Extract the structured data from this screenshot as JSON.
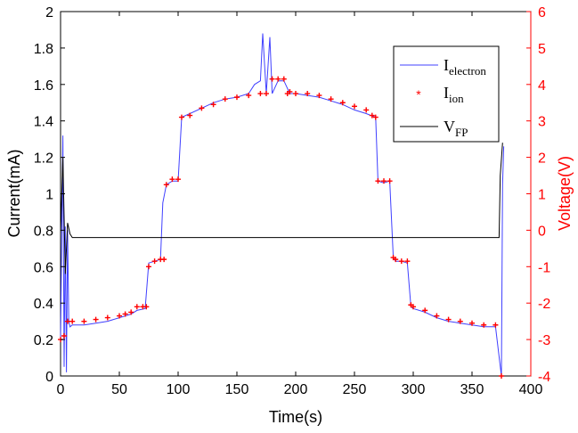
{
  "chart_data": {
    "type": "line",
    "xlabel": "Time(s)",
    "ylabel_left": "Current(mA)",
    "ylabel_right": "Voltage(V)",
    "xlim": [
      0,
      400
    ],
    "ylim_left": [
      0,
      2
    ],
    "ylim_right": [
      -4,
      6
    ],
    "x_ticks": [
      "0",
      "50",
      "100",
      "150",
      "200",
      "250",
      "300",
      "350",
      "400"
    ],
    "y_ticks_left": [
      "0",
      "0.2",
      "0.4",
      "0.6",
      "0.8",
      "1",
      "1.2",
      "1.4",
      "1.6",
      "1.8",
      "2"
    ],
    "y_ticks_right": [
      "-4",
      "-3",
      "-2",
      "-1",
      "0",
      "1",
      "2",
      "3",
      "4",
      "5",
      "6"
    ],
    "grid": false,
    "legend_position": "top-right",
    "legend": [
      {
        "main": "I",
        "sub": "electron"
      },
      {
        "main": "I",
        "sub": "ion"
      },
      {
        "main": "V",
        "sub": "FP"
      }
    ],
    "colors": {
      "electron": "#4040ff",
      "ion": "#ff0000",
      "vfp": "#000000",
      "right_axis": "#ff0000"
    },
    "series": [
      {
        "key": "electron",
        "axis": "left",
        "style": "line",
        "x": [
          0,
          2,
          3,
          4,
          5,
          6,
          7,
          8,
          10,
          20,
          30,
          40,
          50,
          60,
          65,
          72,
          75,
          80,
          85,
          87,
          90,
          95,
          100,
          103,
          110,
          120,
          130,
          140,
          150,
          160,
          165,
          170,
          172,
          175,
          178,
          180,
          185,
          190,
          195,
          200,
          210,
          220,
          230,
          240,
          250,
          260,
          268,
          270,
          275,
          280,
          283,
          285,
          290,
          295,
          298,
          300,
          310,
          320,
          330,
          340,
          350,
          360,
          370,
          375,
          376,
          377
        ],
        "y": [
          0.2,
          1.32,
          0.05,
          0.82,
          0.02,
          0.8,
          0.3,
          0.27,
          0.28,
          0.28,
          0.29,
          0.3,
          0.32,
          0.34,
          0.36,
          0.37,
          0.62,
          0.63,
          0.64,
          0.95,
          1.05,
          1.07,
          1.07,
          1.42,
          1.44,
          1.47,
          1.5,
          1.52,
          1.53,
          1.55,
          1.6,
          1.62,
          1.88,
          1.55,
          1.86,
          1.55,
          1.62,
          1.62,
          1.55,
          1.55,
          1.54,
          1.53,
          1.51,
          1.49,
          1.46,
          1.44,
          1.42,
          1.07,
          1.06,
          1.07,
          0.65,
          0.63,
          0.63,
          0.62,
          0.38,
          0.37,
          0.35,
          0.32,
          0.3,
          0.29,
          0.28,
          0.27,
          0.27,
          0.0,
          1.05,
          1.26
        ]
      },
      {
        "key": "ion",
        "axis": "left",
        "style": "markers",
        "x": [
          0,
          3,
          6,
          10,
          20,
          30,
          40,
          50,
          55,
          60,
          65,
          70,
          73,
          75,
          80,
          85,
          88,
          90,
          95,
          100,
          103,
          110,
          120,
          130,
          140,
          150,
          160,
          170,
          175,
          180,
          185,
          190,
          193,
          195,
          200,
          210,
          220,
          230,
          240,
          250,
          260,
          265,
          268,
          270,
          275,
          280,
          283,
          285,
          290,
          295,
          298,
          300,
          310,
          320,
          330,
          340,
          350,
          360,
          370,
          375
        ],
        "y": [
          0.2,
          0.22,
          0.3,
          0.3,
          0.3,
          0.31,
          0.32,
          0.33,
          0.34,
          0.35,
          0.38,
          0.38,
          0.38,
          0.6,
          0.63,
          0.64,
          0.64,
          1.05,
          1.08,
          1.08,
          1.42,
          1.43,
          1.47,
          1.49,
          1.52,
          1.53,
          1.54,
          1.55,
          1.55,
          1.63,
          1.63,
          1.63,
          1.55,
          1.56,
          1.55,
          1.55,
          1.54,
          1.52,
          1.5,
          1.48,
          1.46,
          1.43,
          1.42,
          1.07,
          1.07,
          1.07,
          0.65,
          0.64,
          0.63,
          0.63,
          0.39,
          0.38,
          0.36,
          0.33,
          0.31,
          0.3,
          0.29,
          0.28,
          0.28,
          0.0
        ]
      },
      {
        "key": "vfp",
        "axis": "right",
        "style": "line",
        "x": [
          0,
          2,
          4,
          6,
          8,
          10,
          12,
          50,
          100,
          150,
          200,
          250,
          300,
          350,
          373,
          374,
          376
        ],
        "y": [
          -0.1,
          2.0,
          -1.2,
          0.2,
          -0.1,
          -0.2,
          -0.2,
          -0.2,
          -0.2,
          -0.2,
          -0.2,
          -0.2,
          -0.2,
          -0.2,
          -0.2,
          1.5,
          2.4
        ]
      }
    ]
  }
}
